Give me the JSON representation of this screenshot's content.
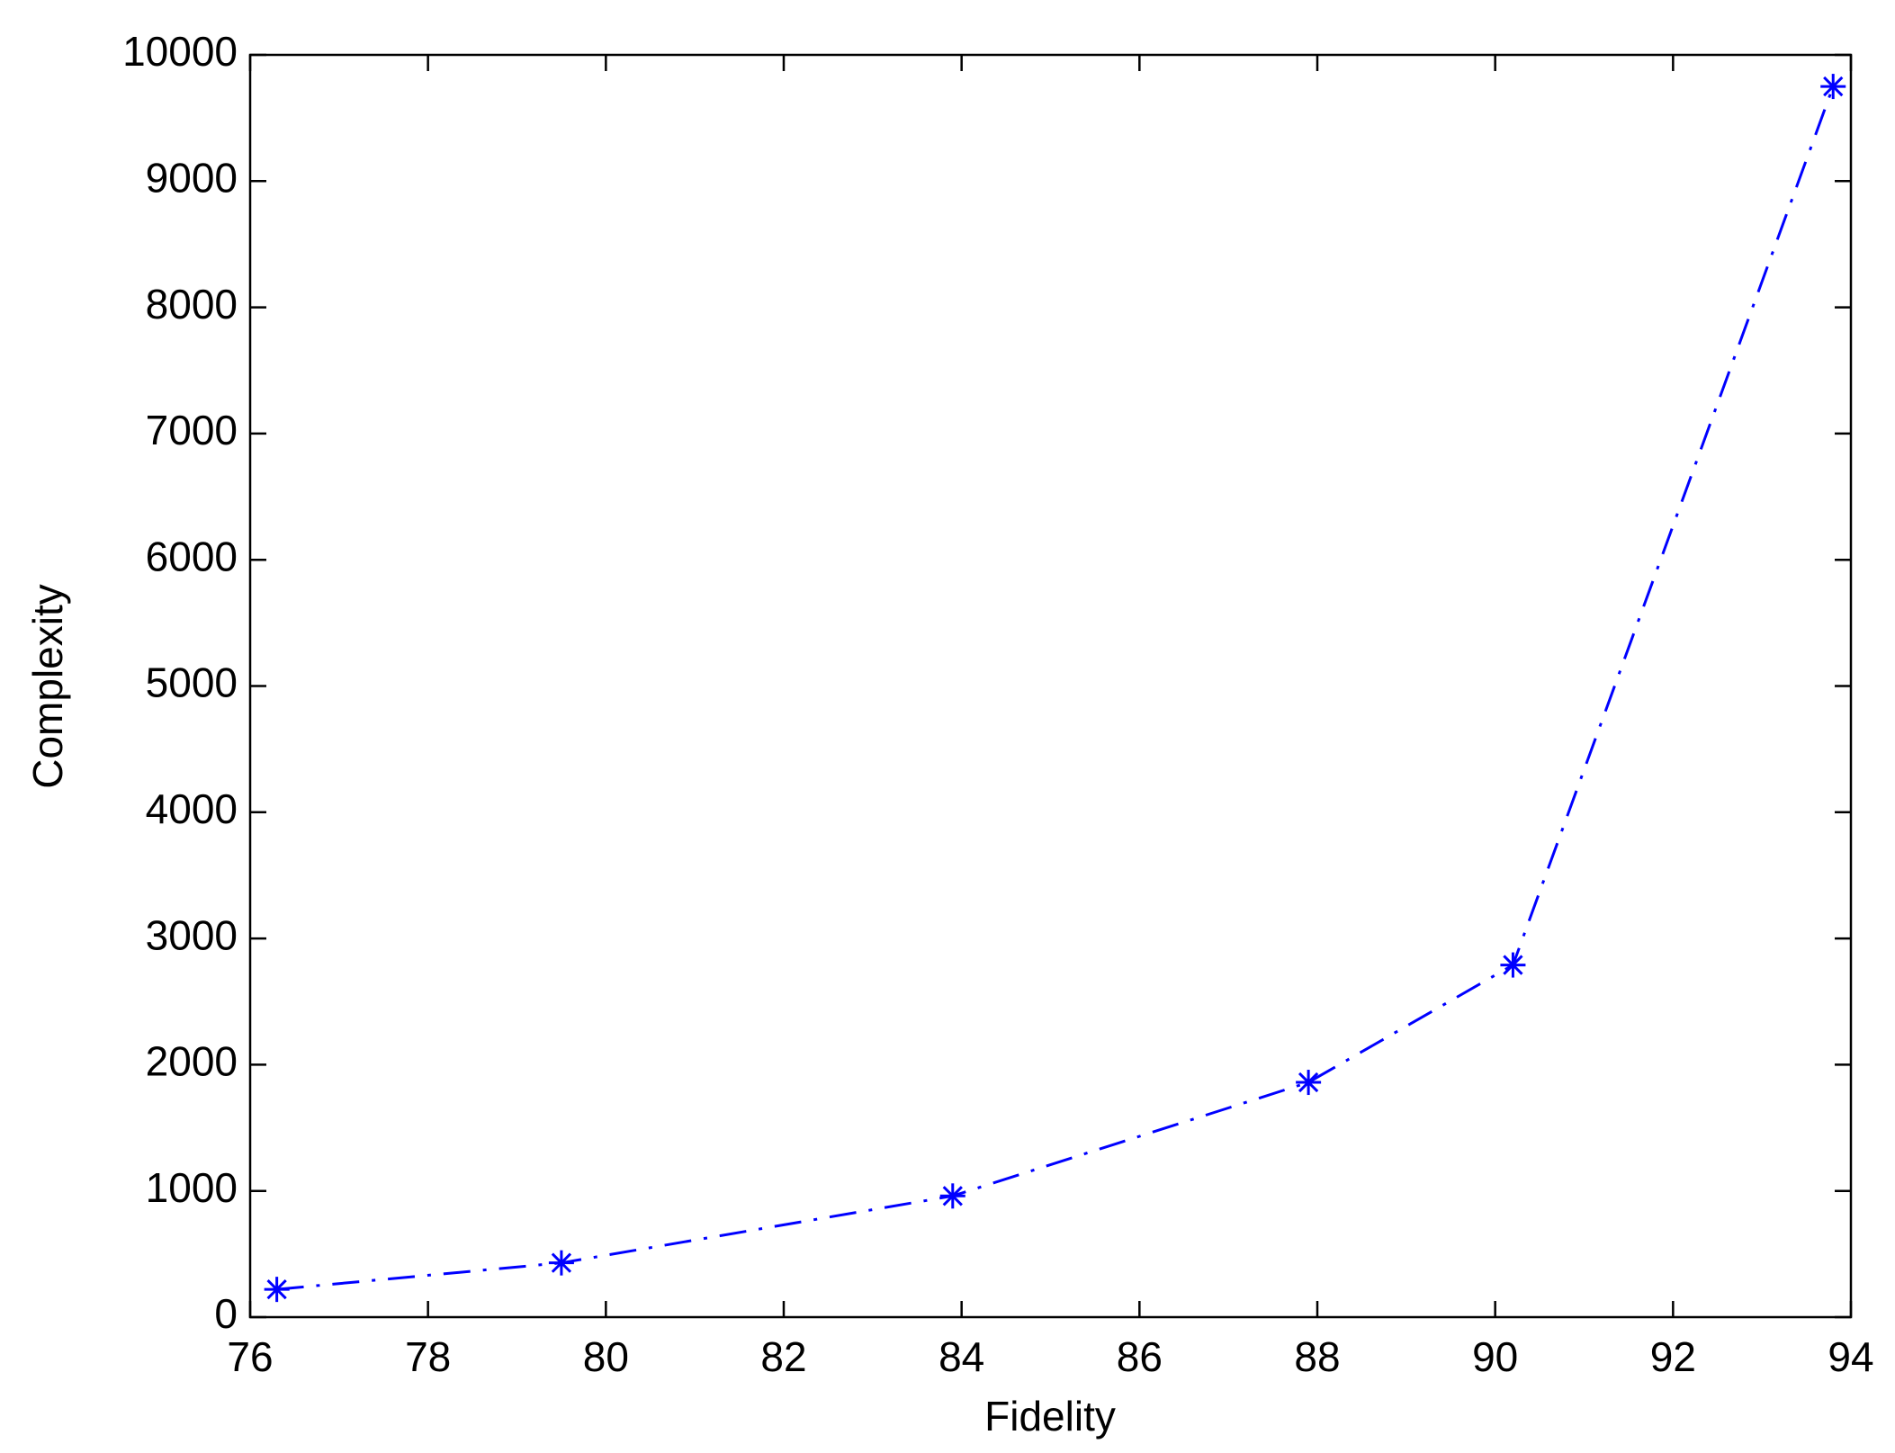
{
  "chart_data": {
    "type": "line",
    "xlabel": "Fidelity",
    "ylabel": "Complexity",
    "x": [
      76.3,
      79.5,
      83.9,
      87.9,
      90.2,
      93.8
    ],
    "values": [
      220,
      430,
      960,
      1860,
      2790,
      9750
    ],
    "color": "#0000ff",
    "line_style": "dashdot",
    "marker": "asterisk",
    "xlim": [
      76,
      94
    ],
    "xticks": [
      76,
      78,
      80,
      82,
      84,
      86,
      88,
      90,
      92,
      94
    ],
    "ylim": [
      0,
      10000
    ],
    "yticks": [
      0,
      1000,
      2000,
      3000,
      4000,
      5000,
      6000,
      7000,
      8000,
      9000,
      10000
    ],
    "grid": false
  }
}
